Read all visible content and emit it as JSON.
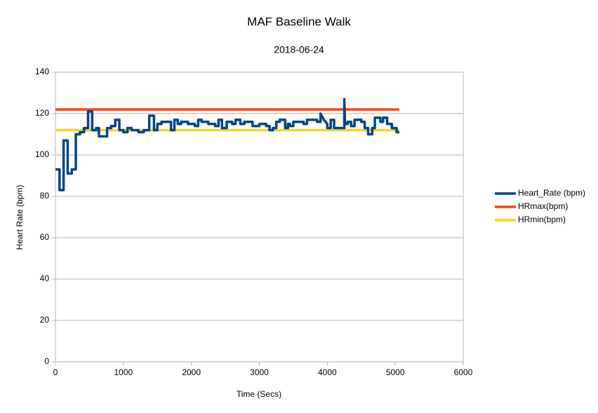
{
  "chart_data": {
    "type": "line",
    "title": "MAF Baseline Walk",
    "subtitle": "2018-06-24",
    "x_label": "Time (Secs)",
    "y_label": "Heart Rate (bpm)",
    "xlim": [
      0,
      6000
    ],
    "xticks": [
      0,
      1000,
      2000,
      3000,
      4000,
      5000,
      6000
    ],
    "ylim": [
      0,
      140
    ],
    "yticks": [
      0,
      20,
      40,
      60,
      80,
      100,
      120,
      140
    ],
    "grid": true,
    "legend": "right",
    "series": [
      {
        "name": "Heart_Rate (bpm)",
        "color": "#004586",
        "x": [
          0,
          60,
          60,
          120,
          120,
          180,
          180,
          240,
          240,
          300,
          300,
          360,
          360,
          420,
          420,
          480,
          480,
          540,
          540,
          600,
          600,
          640,
          640,
          760,
          760,
          820,
          820,
          880,
          880,
          940,
          940,
          1000,
          1000,
          1060,
          1060,
          1120,
          1120,
          1220,
          1220,
          1300,
          1300,
          1380,
          1380,
          1450,
          1450,
          1500,
          1500,
          1560,
          1560,
          1700,
          1700,
          1750,
          1750,
          1800,
          1800,
          1850,
          1850,
          1950,
          1950,
          2050,
          2050,
          2100,
          2100,
          2150,
          2150,
          2250,
          2250,
          2350,
          2350,
          2400,
          2400,
          2450,
          2450,
          2520,
          2520,
          2600,
          2600,
          2650,
          2650,
          2720,
          2720,
          2780,
          2780,
          2900,
          2900,
          3000,
          3000,
          3100,
          3100,
          3150,
          3150,
          3200,
          3200,
          3250,
          3250,
          3300,
          3300,
          3380,
          3380,
          3420,
          3420,
          3450,
          3450,
          3500,
          3500,
          3650,
          3650,
          3700,
          3700,
          3850,
          3850,
          3900,
          3900,
          3950,
          4000,
          4000,
          4050,
          4050,
          4100,
          4100,
          4250,
          4250,
          4260,
          4300,
          4300,
          4350,
          4350,
          4400,
          4400,
          4500,
          4500,
          4550,
          4550,
          4600,
          4600,
          4660,
          4660,
          4700,
          4700,
          4780,
          4780,
          4820,
          4820,
          4880,
          4880,
          4950,
          4950,
          5020,
          5020,
          5060
        ],
        "values": [
          93,
          93,
          83,
          83,
          107,
          107,
          91,
          91,
          93,
          93,
          110,
          110,
          111,
          111,
          113,
          113,
          121,
          121,
          112,
          112,
          113,
          113,
          109,
          109,
          113,
          113,
          114,
          114,
          117,
          117,
          112,
          112,
          111,
          111,
          113,
          113,
          112,
          112,
          111,
          111,
          112,
          112,
          119,
          119,
          112,
          112,
          115,
          115,
          116,
          116,
          112,
          112,
          117,
          117,
          115,
          115,
          116,
          116,
          115,
          115,
          114,
          114,
          117,
          117,
          116,
          116,
          115,
          115,
          114,
          114,
          117,
          117,
          113,
          113,
          116,
          116,
          115,
          115,
          117,
          117,
          115,
          115,
          116,
          116,
          114,
          114,
          115,
          115,
          114,
          114,
          112,
          112,
          113,
          113,
          116,
          116,
          117,
          117,
          113,
          113,
          115,
          115,
          114,
          114,
          116,
          116,
          115,
          115,
          117,
          117,
          116,
          116,
          120,
          117,
          115,
          113,
          113,
          117,
          117,
          113,
          113,
          127,
          115,
          115,
          116,
          116,
          114,
          114,
          117,
          117,
          116,
          116,
          113,
          113,
          110,
          110,
          113,
          113,
          118,
          118,
          116,
          116,
          118,
          118,
          115,
          115,
          113,
          113,
          111,
          111
        ]
      },
      {
        "name": "HRmax(bpm)",
        "color": "#ff420e",
        "x": [
          0,
          5060
        ],
        "values": [
          122,
          122
        ]
      },
      {
        "name": "HRmin(bpm)",
        "color": "#ffd320",
        "x": [
          0,
          5060
        ],
        "values": [
          112,
          112
        ]
      }
    ]
  }
}
